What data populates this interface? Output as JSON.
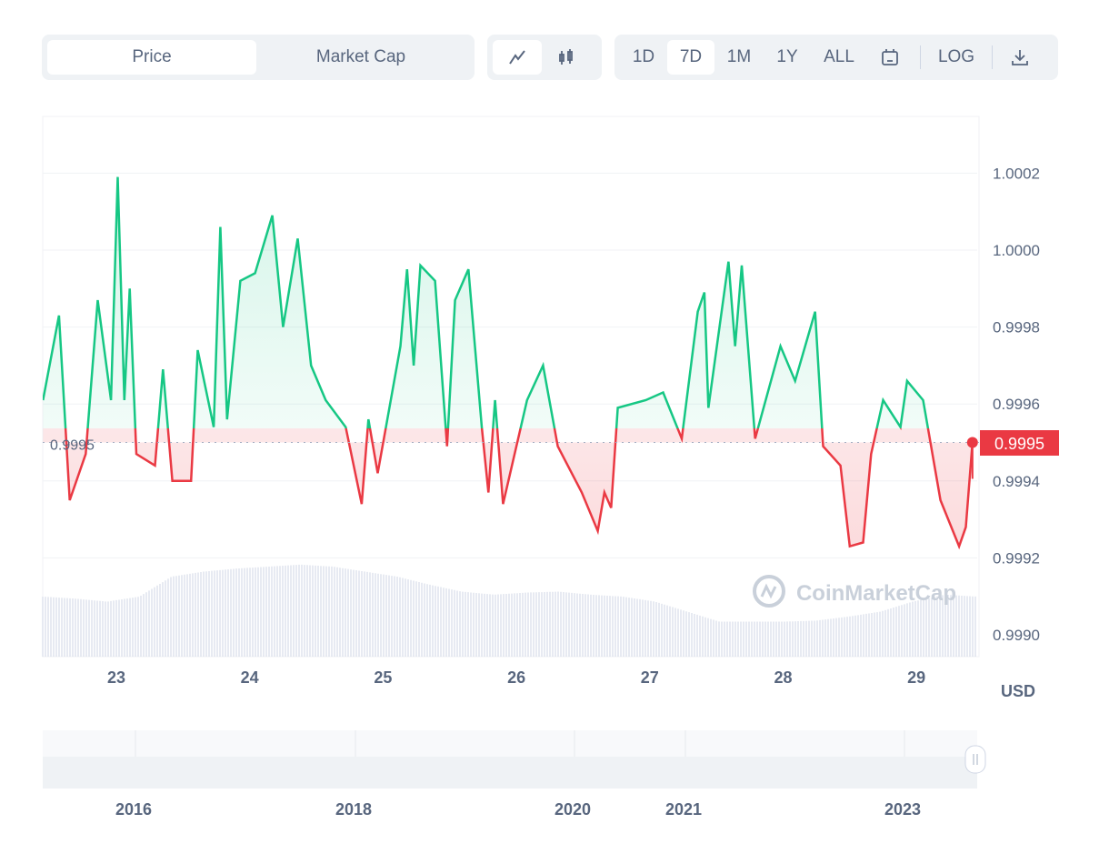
{
  "toolbar": {
    "tabs": [
      {
        "label": "Price",
        "active": true
      },
      {
        "label": "Market Cap",
        "active": false
      }
    ],
    "chart_types": [
      {
        "icon": "line-chart-icon",
        "active": true
      },
      {
        "icon": "candlestick-icon",
        "active": false
      }
    ],
    "ranges": [
      {
        "label": "1D"
      },
      {
        "label": "7D",
        "active": true
      },
      {
        "label": "1M"
      },
      {
        "label": "1Y"
      },
      {
        "label": "ALL"
      }
    ],
    "calendar_icon": "calendar-icon",
    "log_label": "LOG",
    "download_icon": "download-icon"
  },
  "colors": {
    "up": "#16c784",
    "down": "#ea3943",
    "volume": "#cfd6e4"
  },
  "watermark": "CoinMarketCap",
  "currency": "USD",
  "chart_data": {
    "type": "line",
    "baseline": 0.9995,
    "baseline_label": "0.9995",
    "current_label": "0.9995",
    "ylim": [
      0.999,
      1.0003
    ],
    "yticks": [
      "0.9990",
      "0.9992",
      "0.9994",
      "0.9996",
      "0.9998",
      "1.0000",
      "1.0002"
    ],
    "xlim": [
      22.45,
      29.45
    ],
    "xticks": [
      "23",
      "24",
      "25",
      "26",
      "27",
      "28",
      "29"
    ],
    "grid": true,
    "points": [
      [
        22.45,
        0.99961
      ],
      [
        22.57,
        0.99983
      ],
      [
        22.65,
        0.99935
      ],
      [
        22.77,
        0.99947
      ],
      [
        22.86,
        0.99987
      ],
      [
        22.96,
        0.99961
      ],
      [
        23.01,
        1.00019
      ],
      [
        23.06,
        0.99961
      ],
      [
        23.1,
        0.9999
      ],
      [
        23.15,
        0.99947
      ],
      [
        23.29,
        0.99944
      ],
      [
        23.35,
        0.99969
      ],
      [
        23.42,
        0.9994
      ],
      [
        23.56,
        0.9994
      ],
      [
        23.61,
        0.99974
      ],
      [
        23.73,
        0.99954
      ],
      [
        23.78,
        1.00006
      ],
      [
        23.83,
        0.99956
      ],
      [
        23.93,
        0.99992
      ],
      [
        24.04,
        0.99994
      ],
      [
        24.17,
        1.00009
      ],
      [
        24.25,
        0.9998
      ],
      [
        24.36,
        1.00003
      ],
      [
        24.46,
        0.9997
      ],
      [
        24.57,
        0.99961
      ],
      [
        24.72,
        0.99954
      ],
      [
        24.84,
        0.99934
      ],
      [
        24.89,
        0.99956
      ],
      [
        24.96,
        0.99942
      ],
      [
        25.13,
        0.99975
      ],
      [
        25.18,
        0.99995
      ],
      [
        25.23,
        0.9997
      ],
      [
        25.28,
        0.99996
      ],
      [
        25.39,
        0.99992
      ],
      [
        25.48,
        0.99949
      ],
      [
        25.54,
        0.99987
      ],
      [
        25.64,
        0.99995
      ],
      [
        25.74,
        0.99954
      ],
      [
        25.79,
        0.99937
      ],
      [
        25.84,
        0.99961
      ],
      [
        25.9,
        0.99934
      ],
      [
        26.08,
        0.99961
      ],
      [
        26.2,
        0.9997
      ],
      [
        26.31,
        0.99949
      ],
      [
        26.49,
        0.99937
      ],
      [
        26.61,
        0.99927
      ],
      [
        26.66,
        0.99937
      ],
      [
        26.71,
        0.99933
      ],
      [
        26.76,
        0.99959
      ],
      [
        26.97,
        0.99961
      ],
      [
        27.1,
        0.99963
      ],
      [
        27.24,
        0.99951
      ],
      [
        27.36,
        0.99984
      ],
      [
        27.41,
        0.99989
      ],
      [
        27.44,
        0.99959
      ],
      [
        27.59,
        0.99997
      ],
      [
        27.64,
        0.99975
      ],
      [
        27.69,
        0.99996
      ],
      [
        27.79,
        0.99951
      ],
      [
        27.98,
        0.99975
      ],
      [
        28.09,
        0.99966
      ],
      [
        28.24,
        0.99984
      ],
      [
        28.3,
        0.99949
      ],
      [
        28.43,
        0.99944
      ],
      [
        28.5,
        0.99923
      ],
      [
        28.6,
        0.99924
      ],
      [
        28.66,
        0.99947
      ],
      [
        28.75,
        0.99961
      ],
      [
        28.88,
        0.99954
      ],
      [
        28.93,
        0.99966
      ],
      [
        29.05,
        0.99961
      ],
      [
        29.18,
        0.99935
      ],
      [
        29.32,
        0.99923
      ],
      [
        29.37,
        0.99928
      ],
      [
        29.42,
        0.9995
      ]
    ],
    "volume_profile": [
      0.6,
      0.58,
      0.55,
      0.6,
      0.8,
      0.85,
      0.88,
      0.9,
      0.92,
      0.9,
      0.85,
      0.8,
      0.72,
      0.65,
      0.62,
      0.64,
      0.65,
      0.62,
      0.6,
      0.55,
      0.45,
      0.35,
      0.35,
      0.35,
      0.36,
      0.4,
      0.45,
      0.55,
      0.62,
      0.6
    ],
    "navigator_years": [
      "2016",
      "2018",
      "2020",
      "2021",
      "2023"
    ]
  }
}
